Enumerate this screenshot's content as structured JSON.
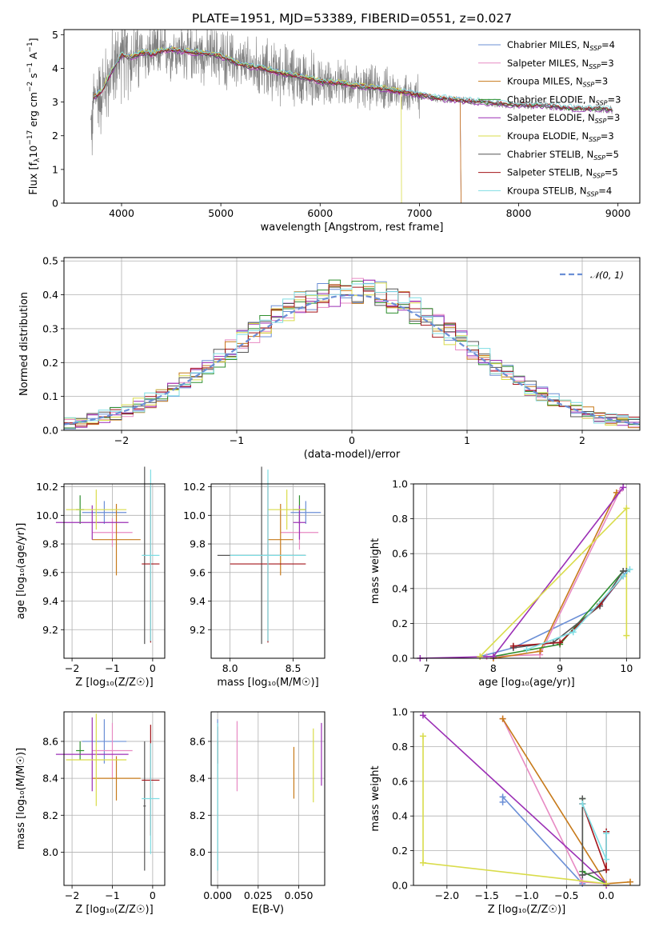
{
  "figure_title": "PLATE=1951, MJD=53389, FIBERID=0551, z=0.027",
  "colors": [
    "#6b8fd6",
    "#e78ac3",
    "#c77a1a",
    "#2f8f2f",
    "#9b2fb5",
    "#d9dc4a",
    "#555555",
    "#a3141a",
    "#7fdde3"
  ],
  "chart_data": [
    {
      "id": "spectrum",
      "type": "line",
      "title": "PLATE=1951, MJD=53389, FIBERID=0551, z=0.027",
      "xlabel": "wavelength [Angstrom, rest frame]",
      "ylabel": "Flux [f_λ 10^-17 erg cm^-2 s^-1 A^-1]",
      "ylabel_parts": [
        "Flux [f",
        "λ",
        "10",
        "−17",
        " erg cm",
        "−2",
        " s",
        "−1",
        " A",
        "−1",
        "]"
      ],
      "xlim": [
        3420,
        9220
      ],
      "ylim": [
        0,
        5.15
      ],
      "xticks": [
        4000,
        5000,
        6000,
        7000,
        8000,
        9000
      ],
      "yticks": [
        0,
        1,
        2,
        3,
        4,
        5
      ],
      "grid": false,
      "legend_position": "upper-right",
      "legend": [
        {
          "name": "Chabrier MILES, N",
          "sub": "SSP",
          "suffix": "=4"
        },
        {
          "name": "Salpeter MILES, N",
          "sub": "SSP",
          "suffix": "=3"
        },
        {
          "name": "Kroupa MILES, N",
          "sub": "SSP",
          "suffix": "=3"
        },
        {
          "name": "Chabrier ELODIE, N",
          "sub": "SSP",
          "suffix": "=3"
        },
        {
          "name": "Salpeter ELODIE, N",
          "sub": "SSP",
          "suffix": "=3"
        },
        {
          "name": "Kroupa ELODIE, N",
          "sub": "SSP",
          "suffix": "=3"
        },
        {
          "name": "Chabrier STELIB, N",
          "sub": "SSP",
          "suffix": "=5"
        },
        {
          "name": "Salpeter STELIB, N",
          "sub": "SSP",
          "suffix": "=5"
        },
        {
          "name": "Kroupa STELIB, N",
          "sub": "SSP",
          "suffix": "=4"
        }
      ],
      "continuum": {
        "wavelength": [
          3700,
          3800,
          3900,
          4000,
          4100,
          4200,
          4300,
          4400,
          4500,
          4600,
          4800,
          5000,
          5200,
          5400,
          5600,
          5800,
          6000,
          6200,
          6400,
          6600,
          6800,
          7000,
          7200,
          7400,
          7600,
          7800,
          8000,
          8200,
          8400,
          8600,
          8800,
          9000
        ],
        "flux": [
          3.1,
          3.3,
          3.9,
          4.4,
          4.3,
          4.45,
          4.4,
          4.5,
          4.55,
          4.5,
          4.45,
          4.35,
          4.1,
          4.0,
          3.85,
          3.75,
          3.6,
          3.55,
          3.45,
          3.4,
          3.3,
          3.2,
          3.1,
          3.05,
          3.0,
          2.95,
          2.9,
          2.9,
          2.85,
          2.8,
          2.8,
          2.75
        ]
      },
      "data_range": [
        3690,
        8950
      ],
      "model_cutoffs": {
        "miles": 7420,
        "elodie": 6820
      }
    },
    {
      "id": "residuals",
      "type": "histogram",
      "xlabel": "(data-model)/error",
      "ylabel": "Normed distribution",
      "xlim": [
        -2.5,
        2.5
      ],
      "ylim": [
        0,
        0.51
      ],
      "xticks": [
        -2,
        -1,
        0,
        1,
        2
      ],
      "xtick_labels": [
        "−2",
        "−1",
        "0",
        "1",
        "2"
      ],
      "yticks": [
        0.0,
        0.1,
        0.2,
        0.3,
        0.4,
        0.5
      ],
      "ytick_labels": [
        "0.0",
        "0.1",
        "0.2",
        "0.3",
        "0.4",
        "0.5"
      ],
      "grid": true,
      "bin_width": 0.1,
      "reference_curve": {
        "name": "𝒩(0, 1)",
        "style": "dashed",
        "color": "#6b8fd6"
      },
      "legend_position": "upper-right"
    },
    {
      "id": "age_vs_Z",
      "type": "errorbar",
      "xlabel": "Z [log₁₀(Z/Z☉)]",
      "ylabel": "age  [log₁₀(age/yr)]",
      "xlim": [
        -2.2,
        0.3
      ],
      "ylim": [
        9.0,
        10.22
      ],
      "xticks": [
        -2,
        -1,
        0
      ],
      "xtick_labels": [
        "−2",
        "−1",
        "0"
      ],
      "yticks": [
        9.2,
        9.4,
        9.6,
        9.8,
        10.0,
        10.2
      ],
      "ytick_labels": [
        "9.2",
        "9.4",
        "9.6",
        "9.8",
        "10.0",
        "10.2"
      ],
      "grid": true,
      "points": [
        {
          "x": -1.2,
          "xerr": 0.55,
          "y": 10.02,
          "yerr": 0.08,
          "color": "#6b8fd6"
        },
        {
          "x": -1.0,
          "xerr": 0.5,
          "y": 9.88,
          "yerr": 0.1,
          "color": "#e78ac3"
        },
        {
          "x": -0.9,
          "xerr": 0.6,
          "y": 9.83,
          "yerr": 0.25,
          "color": "#c77a1a"
        },
        {
          "x": -1.8,
          "xerr": 0.1,
          "y": 10.04,
          "yerr": 0.1,
          "color": "#2f8f2f"
        },
        {
          "x": -1.5,
          "xerr": 0.9,
          "y": 9.95,
          "yerr": 0.12,
          "color": "#9b2fb5"
        },
        {
          "x": -1.4,
          "xerr": 0.75,
          "y": 10.04,
          "yerr": 0.14,
          "color": "#d9dc4a"
        },
        {
          "x": -0.2,
          "xerr": 0.03,
          "y": 9.72,
          "yerr": 0.62,
          "color": "#555555"
        },
        {
          "x": -0.05,
          "xerr": 0.22,
          "y": 9.66,
          "yerr": 0.55,
          "color": "#a3141a"
        },
        {
          "x": -0.05,
          "xerr": 0.22,
          "y": 9.72,
          "yerr": 0.6,
          "color": "#7fdde3"
        }
      ]
    },
    {
      "id": "age_vs_mass",
      "type": "errorbar",
      "xlabel": "mass [log₁₀(M/M☉)]",
      "xlim": [
        7.85,
        8.75
      ],
      "ylim": [
        9.0,
        10.22
      ],
      "xticks": [
        8.0,
        8.5
      ],
      "xtick_labels": [
        "8.0",
        "8.5"
      ],
      "yticks": [
        9.2,
        9.4,
        9.6,
        9.8,
        10.0,
        10.2
      ],
      "ytick_labels": [
        "9.2",
        "9.4",
        "9.6",
        "9.8",
        "10.0",
        "10.2"
      ],
      "grid": true,
      "points": [
        {
          "x": 8.6,
          "xerr": 0.12,
          "y": 10.02,
          "yerr": 0.08,
          "color": "#6b8fd6"
        },
        {
          "x": 8.55,
          "xerr": 0.15,
          "y": 9.88,
          "yerr": 0.12,
          "color": "#e78ac3"
        },
        {
          "x": 8.4,
          "xerr": 0.1,
          "y": 9.83,
          "yerr": 0.25,
          "color": "#c77a1a"
        },
        {
          "x": 8.55,
          "xerr": 0.05,
          "y": 10.04,
          "yerr": 0.1,
          "color": "#2f8f2f"
        },
        {
          "x": 8.55,
          "xerr": 0.05,
          "y": 9.95,
          "yerr": 0.12,
          "color": "#9b2fb5"
        },
        {
          "x": 8.45,
          "xerr": 0.15,
          "y": 10.04,
          "yerr": 0.14,
          "color": "#d9dc4a"
        },
        {
          "x": 8.25,
          "xerr": 0.35,
          "y": 9.72,
          "yerr": 0.62,
          "color": "#555555"
        },
        {
          "x": 8.3,
          "xerr": 0.3,
          "y": 9.66,
          "yerr": 0.55,
          "color": "#a3141a"
        },
        {
          "x": 8.3,
          "xerr": 0.3,
          "y": 9.72,
          "yerr": 0.6,
          "color": "#7fdde3"
        }
      ]
    },
    {
      "id": "weight_vs_age",
      "type": "line",
      "xlabel": "age  [log₁₀(age/yr)]",
      "ylabel": "mass weight",
      "xlim": [
        6.8,
        10.2
      ],
      "ylim": [
        0,
        1
      ],
      "xticks": [
        7,
        8,
        9,
        10
      ],
      "xtick_labels": [
        "7",
        "8",
        "9",
        "10"
      ],
      "yticks": [
        0.0,
        0.2,
        0.4,
        0.6,
        0.8,
        1.0
      ],
      "ytick_labels": [
        "0.0",
        "0.2",
        "0.4",
        "0.6",
        "0.8",
        "1.0"
      ],
      "grid": true,
      "series": [
        {
          "color": "#6b8fd6",
          "x": [
            7.8,
            8.3,
            9.6,
            10.0
          ],
          "y": [
            0.01,
            0.06,
            0.3,
            0.5
          ]
        },
        {
          "color": "#e78ac3",
          "x": [
            7.9,
            8.7,
            9.9
          ],
          "y": [
            0.01,
            0.02,
            0.96
          ]
        },
        {
          "color": "#c77a1a",
          "x": [
            8.0,
            8.7,
            9.85
          ],
          "y": [
            0.0,
            0.04,
            0.95
          ]
        },
        {
          "color": "#2f8f2f",
          "x": [
            8.0,
            9.0,
            9.95
          ],
          "y": [
            0.01,
            0.08,
            0.5
          ]
        },
        {
          "color": "#9b2fb5",
          "x": [
            6.9,
            8.0,
            9.95
          ],
          "y": [
            0.0,
            0.01,
            0.98
          ]
        },
        {
          "color": "#d9dc4a",
          "x": [
            7.8,
            10.0,
            10.0
          ],
          "y": [
            0.01,
            0.86,
            0.13
          ]
        },
        {
          "color": "#555555",
          "x": [
            8.3,
            8.9,
            9.6,
            9.95,
            10.0
          ],
          "y": [
            0.06,
            0.09,
            0.3,
            0.5,
            0.5
          ]
        },
        {
          "color": "#a3141a",
          "x": [
            8.3,
            9.0,
            9.6,
            9.95
          ],
          "y": [
            0.07,
            0.09,
            0.31,
            0.47
          ]
        },
        {
          "color": "#7fdde3",
          "x": [
            8.5,
            9.2,
            9.95,
            10.05
          ],
          "y": [
            0.05,
            0.15,
            0.47,
            0.51
          ]
        }
      ]
    },
    {
      "id": "mass_vs_Z",
      "type": "errorbar",
      "xlabel": "Z [log₁₀(Z/Z☉)]",
      "ylabel": "mass [log₁₀(M/M☉)]",
      "xlim": [
        -2.2,
        0.3
      ],
      "ylim": [
        7.82,
        8.76
      ],
      "xticks": [
        -2,
        -1,
        0
      ],
      "xtick_labels": [
        "−2",
        "−1",
        "0"
      ],
      "yticks": [
        8.0,
        8.2,
        8.4,
        8.6
      ],
      "ytick_labels": [
        "8.0",
        "8.2",
        "8.4",
        "8.6"
      ],
      "grid": true,
      "points": [
        {
          "x": -1.2,
          "xerr": 0.55,
          "y": 8.6,
          "yerr": 0.12,
          "color": "#6b8fd6"
        },
        {
          "x": -1.0,
          "xerr": 0.5,
          "y": 8.55,
          "yerr": 0.15,
          "color": "#e78ac3"
        },
        {
          "x": -0.9,
          "xerr": 0.6,
          "y": 8.4,
          "yerr": 0.12,
          "color": "#c77a1a"
        },
        {
          "x": -1.8,
          "xerr": 0.1,
          "y": 8.55,
          "yerr": 0.05,
          "color": "#2f8f2f"
        },
        {
          "x": -1.5,
          "xerr": 0.9,
          "y": 8.53,
          "yerr": 0.2,
          "color": "#9b2fb5"
        },
        {
          "x": -1.4,
          "xerr": 0.75,
          "y": 8.5,
          "yerr": 0.25,
          "color": "#d9dc4a"
        },
        {
          "x": -0.2,
          "xerr": 0.03,
          "y": 8.25,
          "yerr": 0.35,
          "color": "#555555"
        },
        {
          "x": -0.05,
          "xerr": 0.22,
          "y": 8.39,
          "yerr": 0.3,
          "color": "#a3141a"
        },
        {
          "x": -0.05,
          "xerr": 0.22,
          "y": 8.29,
          "yerr": 0.3,
          "color": "#7fdde3"
        }
      ]
    },
    {
      "id": "mass_vs_ebv",
      "type": "errorbar",
      "xlabel": "E(B-V)",
      "xlim": [
        -0.004,
        0.066
      ],
      "ylim": [
        7.82,
        8.76
      ],
      "xticks": [
        0.0,
        0.025,
        0.05
      ],
      "xtick_labels": [
        "0.000",
        "0.025",
        "0.050"
      ],
      "yticks": [
        8.0,
        8.2,
        8.4,
        8.6
      ],
      "ytick_labels": [
        "8.0",
        "8.2",
        "8.4",
        "8.6"
      ],
      "grid": true,
      "points": [
        {
          "x": 0.0,
          "xerr": 0,
          "y": 8.6,
          "yerr": 0.12,
          "color": "#6b8fd6"
        },
        {
          "x": 0.012,
          "xerr": 0,
          "y": 8.52,
          "yerr": 0.19,
          "color": "#e78ac3"
        },
        {
          "x": 0.047,
          "xerr": 0,
          "y": 8.43,
          "yerr": 0.14,
          "color": "#c77a1a"
        },
        {
          "x": 0.0,
          "xerr": 0,
          "y": 8.55,
          "yerr": 0.05,
          "color": "#2f8f2f"
        },
        {
          "x": 0.064,
          "xerr": 0,
          "y": 8.53,
          "yerr": 0.17,
          "color": "#9b2fb5"
        },
        {
          "x": 0.059,
          "xerr": 0,
          "y": 8.47,
          "yerr": 0.2,
          "color": "#d9dc4a"
        },
        {
          "x": 0.0,
          "xerr": 0,
          "y": 8.2,
          "yerr": 0.3,
          "color": "#555555"
        },
        {
          "x": 0.0,
          "xerr": 0,
          "y": 8.58,
          "yerr": 0.1,
          "color": "#a3141a"
        },
        {
          "x": 0.0,
          "xerr": 0,
          "y": 8.3,
          "yerr": 0.4,
          "color": "#7fdde3"
        }
      ]
    },
    {
      "id": "weight_vs_Z",
      "type": "line",
      "xlabel": "Z [log₁₀(Z/Z☉)]",
      "ylabel": "mass weight",
      "xlim": [
        -2.42,
        0.42
      ],
      "ylim": [
        0,
        1
      ],
      "xticks": [
        -2.0,
        -1.5,
        -1.0,
        -0.5,
        0.0
      ],
      "xtick_labels": [
        "−2.0",
        "−1.5",
        "−1.0",
        "−0.5",
        "0.0"
      ],
      "yticks": [
        0.0,
        0.2,
        0.4,
        0.6,
        0.8,
        1.0
      ],
      "ytick_labels": [
        "0.0",
        "0.2",
        "0.4",
        "0.6",
        "0.8",
        "1.0"
      ],
      "grid": true,
      "series": [
        {
          "color": "#6b8fd6",
          "x": [
            -1.3,
            -1.3,
            -0.3,
            -0.3
          ],
          "y": [
            0.48,
            0.51,
            0.01,
            0.06
          ]
        },
        {
          "color": "#e78ac3",
          "x": [
            -1.3,
            -0.3,
            0.0
          ],
          "y": [
            0.96,
            0.02,
            0.01
          ]
        },
        {
          "color": "#c77a1a",
          "x": [
            -1.3,
            0.0,
            0.3
          ],
          "y": [
            0.96,
            0.01,
            0.02
          ]
        },
        {
          "color": "#2f8f2f",
          "x": [
            -0.3,
            -0.3,
            0.0
          ],
          "y": [
            0.5,
            0.08,
            0.01
          ]
        },
        {
          "color": "#9b2fb5",
          "x": [
            -2.3,
            0.0,
            0.0
          ],
          "y": [
            0.98,
            0.01,
            0.0
          ]
        },
        {
          "color": "#d9dc4a",
          "x": [
            -2.3,
            -2.3,
            0.0
          ],
          "y": [
            0.86,
            0.13,
            0.01
          ]
        },
        {
          "color": "#555555",
          "x": [
            -0.3,
            -0.3,
            0.0
          ],
          "y": [
            0.5,
            0.06,
            0.09
          ]
        },
        {
          "color": "#a3141a",
          "x": [
            -0.3,
            0.0,
            0.0
          ],
          "y": [
            0.47,
            0.09,
            0.31
          ]
        },
        {
          "color": "#7fdde3",
          "x": [
            -0.3,
            0.0,
            0.0
          ],
          "y": [
            0.47,
            0.15,
            0.3
          ]
        }
      ]
    }
  ]
}
